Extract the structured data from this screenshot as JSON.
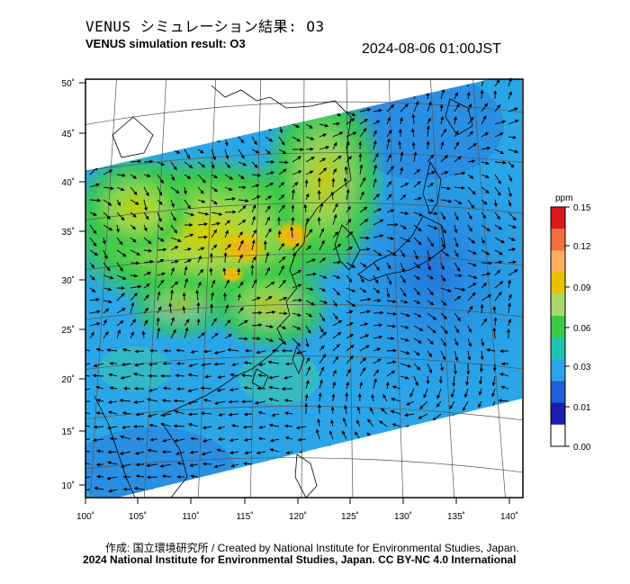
{
  "header": {
    "title_jp": "VENUS シミュレーション結果: O3",
    "title_en": "VENUS simulation result: O3",
    "timestamp": "2024-08-06 01:00JST"
  },
  "map": {
    "lon_ticks": [
      "100˚",
      "105˚",
      "110˚",
      "115˚",
      "120˚",
      "125˚",
      "130˚",
      "135˚",
      "140˚"
    ],
    "lat_ticks": [
      "50˚",
      "45˚",
      "40˚",
      "35˚",
      "30˚",
      "25˚",
      "20˚",
      "15˚",
      "10˚"
    ],
    "lon_range": [
      100,
      141
    ],
    "lat_range": [
      9,
      51
    ]
  },
  "colorbar": {
    "unit": "ppm",
    "ticks": [
      "0.15",
      "0.12",
      "0.09",
      "0.06",
      "0.03",
      "0.01",
      "0.00"
    ],
    "colors": [
      "#d7191c",
      "#f46d43",
      "#fdae61",
      "#e6c200",
      "#a6d96a",
      "#3cc94a",
      "#21c1b0",
      "#2aa6e8",
      "#1f5fd6",
      "#1b1bb0",
      "#ffffff"
    ]
  },
  "credits": {
    "line1": "作成: 国立環境研究所 / Created by National Institute for Environmental Studies, Japan.",
    "line2": "2024 National Institute for Environmental Studies, Japan. CC BY-NC 4.0 International"
  }
}
